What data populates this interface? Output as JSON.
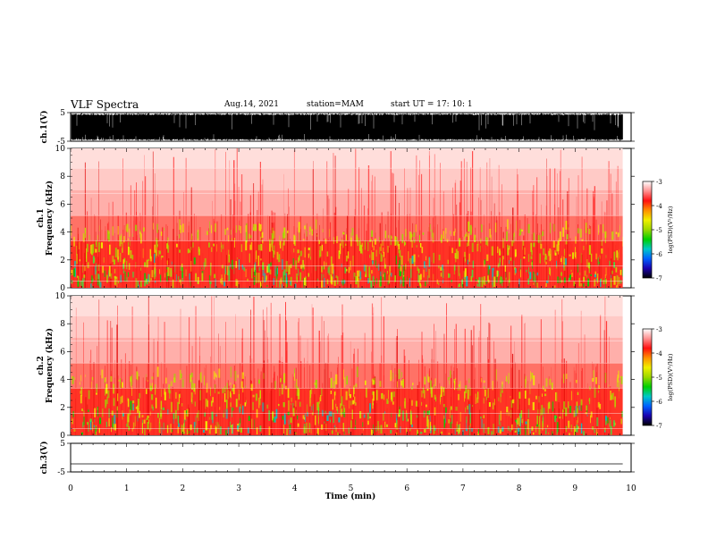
{
  "header": {
    "title": "VLF Spectra",
    "date": "Aug.14, 2021",
    "station": "station=MAM",
    "start_ut": "start  UT =   17: 10: 1"
  },
  "chart_data": {
    "type": "heatmap",
    "xlabel": "Time  (min)",
    "xlim": [
      0,
      10
    ],
    "xticks": [
      "0",
      "1",
      "2",
      "3",
      "4",
      "5",
      "6",
      "7",
      "8",
      "9",
      "10"
    ],
    "panels": [
      {
        "id": "ch1_waveform",
        "type": "line",
        "ylabel": "ch.1(V)",
        "ylim": [
          -5,
          5
        ],
        "yticks": [
          "5",
          "-5"
        ],
        "data_end_min": 9.85
      },
      {
        "id": "ch1_spectrogram",
        "type": "heatmap",
        "ylabel": "ch.1\nFrequency  (kHz)",
        "ylim": [
          0,
          10
        ],
        "yticks": [
          "0",
          "2",
          "4",
          "6",
          "8",
          "10"
        ]
      },
      {
        "id": "ch2_spectrogram",
        "type": "heatmap",
        "ylabel": "ch.2\nFrequency  (kHz)",
        "ylim": [
          0,
          10
        ],
        "yticks": [
          "0",
          "2",
          "4",
          "6",
          "8",
          "10"
        ]
      },
      {
        "id": "ch3_waveform",
        "type": "line",
        "ylabel": "ch.3(V)",
        "ylim": [
          -5,
          5
        ],
        "yticks": [
          "5",
          "-5"
        ],
        "level_v": -2.2
      }
    ],
    "colorbar": {
      "label": "log(PSD)(V²/Hz)",
      "range": [
        -7,
        -3
      ],
      "ticks": [
        "-3",
        "-4",
        "-5",
        "-6",
        "-7"
      ],
      "colors": [
        "#000000",
        "#1a00b0",
        "#0060ff",
        "#00c8c8",
        "#00d000",
        "#9cd800",
        "#f0f000",
        "#ff9000",
        "#ff1010",
        "#ff9090",
        "#ffffff"
      ]
    }
  }
}
